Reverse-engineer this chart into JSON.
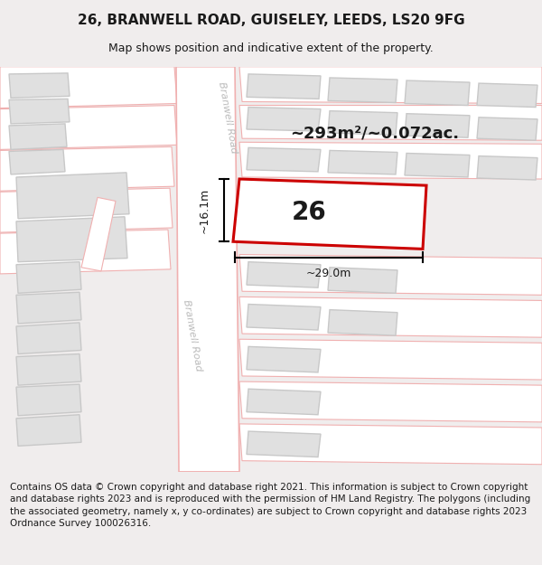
{
  "title": "26, BRANWELL ROAD, GUISELEY, LEEDS, LS20 9FG",
  "subtitle": "Map shows position and indicative extent of the property.",
  "footer": "Contains OS data © Crown copyright and database right 2021. This information is subject to Crown copyright and database rights 2023 and is reproduced with the permission of HM Land Registry. The polygons (including the associated geometry, namely x, y co-ordinates) are subject to Crown copyright and database rights 2023 Ordnance Survey 100026316.",
  "area_label": "~293m²/~0.072ac.",
  "number_label": "26",
  "width_label": "~29.0m",
  "height_label": "~16.1m",
  "map_bg": "#ffffff",
  "road_border": "#f0b0b0",
  "building_fill": "#e0e0e0",
  "building_stroke": "#c8c8c8",
  "highlight_color": "#cc0000",
  "text_color": "#1a1a1a",
  "road_label_color": "#bbbbbb",
  "dim_line_color": "#000000",
  "title_fontsize": 11,
  "subtitle_fontsize": 9,
  "footer_fontsize": 7.5
}
